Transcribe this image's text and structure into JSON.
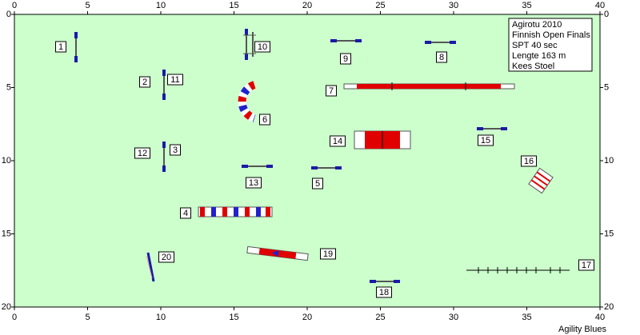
{
  "axes": {
    "xlim": [
      0,
      40
    ],
    "ylim": [
      0,
      20
    ],
    "xticks": [
      0,
      5,
      10,
      15,
      20,
      25,
      30,
      35,
      40
    ],
    "yticks": [
      0,
      5,
      10,
      15,
      20
    ]
  },
  "info": [
    "Agirotu 2010",
    "Finnish Open Finals",
    "SPT 40 sec",
    "Lengte 163 m",
    "Kees Stoel"
  ],
  "obstacles": [
    {
      "label": "1"
    },
    {
      "label": "2"
    },
    {
      "label": "3"
    },
    {
      "label": "4"
    },
    {
      "label": "5"
    },
    {
      "label": "6"
    },
    {
      "label": "7"
    },
    {
      "label": "8"
    },
    {
      "label": "9"
    },
    {
      "label": "10"
    },
    {
      "label": "11"
    },
    {
      "label": "12"
    },
    {
      "label": "13"
    },
    {
      "label": "14"
    },
    {
      "label": "15"
    },
    {
      "label": "16"
    },
    {
      "label": "17"
    },
    {
      "label": "18"
    },
    {
      "label": "19"
    },
    {
      "label": "20"
    }
  ],
  "footer": "Agility Blues"
}
